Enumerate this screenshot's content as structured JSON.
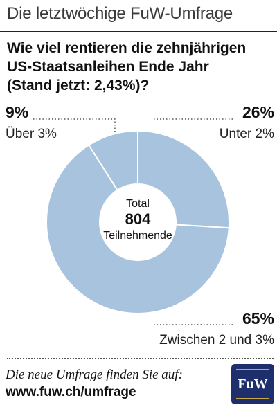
{
  "header": {
    "title": "Die letztwöchige FuW-Umfrage"
  },
  "question": {
    "line1": "Wie viel rentieren die zehnjährigen",
    "line2": "US-Staatsanleihen Ende Jahr",
    "line3": "(Stand jetzt: 2,43%)?"
  },
  "chart_data": {
    "type": "pie",
    "donut": true,
    "categories": [
      "Unter 2%",
      "Zwischen 2 und 3%",
      "Über 3%"
    ],
    "values": [
      26,
      65,
      9
    ],
    "value_labels": [
      "26%",
      "65%",
      "9%"
    ],
    "center": {
      "top": "Total",
      "value": "804",
      "bottom": "Teilnehmende"
    },
    "colors": {
      "slice": "#a8c3dd",
      "separator": "#ffffff",
      "leader": "#555555"
    }
  },
  "footer": {
    "line1": "Die neue Umfrage finden Sie auf:",
    "line2": "www.fuw.ch/umfrage",
    "logo_text": "FuW"
  }
}
